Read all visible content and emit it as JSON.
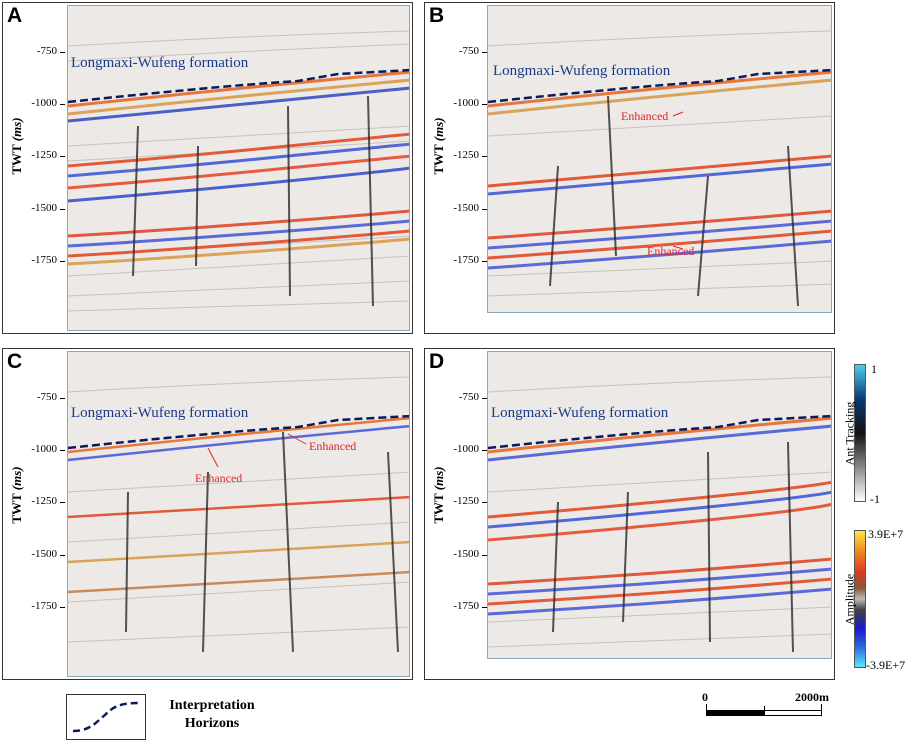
{
  "panels": [
    {
      "letter": "A",
      "formation": "Longmaxi-Wufeng formation",
      "enhanced": []
    },
    {
      "letter": "B",
      "formation": "Longmaxi-Wufeng formation",
      "enhanced": [
        "Enhanced",
        "Enhanced"
      ]
    },
    {
      "letter": "C",
      "formation": "Longmaxi-Wufeng formation",
      "enhanced": [
        "Enhanced",
        "Enhanced"
      ]
    },
    {
      "letter": "D",
      "formation": "Longmaxi-Wufeng formation",
      "enhanced": []
    }
  ],
  "axis": {
    "label": "TWT",
    "unit": "(ms)",
    "ticks": [
      "-750",
      "-1000",
      "-1250",
      "-1500",
      "-1750"
    ]
  },
  "colorbars": {
    "ant_tracking": {
      "title": "Ant Tracking",
      "max": "1",
      "min": "-1"
    },
    "amplitude": {
      "title": "Amplitude",
      "max": "3.9E+7",
      "min": "-3.9E+7"
    }
  },
  "legend": {
    "line1": "Interpretation",
    "line2": "Horizons"
  },
  "scalebar": {
    "start": "0",
    "end": "2000m"
  },
  "colors": {
    "horizon": "#0a1a5a",
    "formation_text": "#1a3a8a",
    "enhanced_text": "#e0282a"
  }
}
